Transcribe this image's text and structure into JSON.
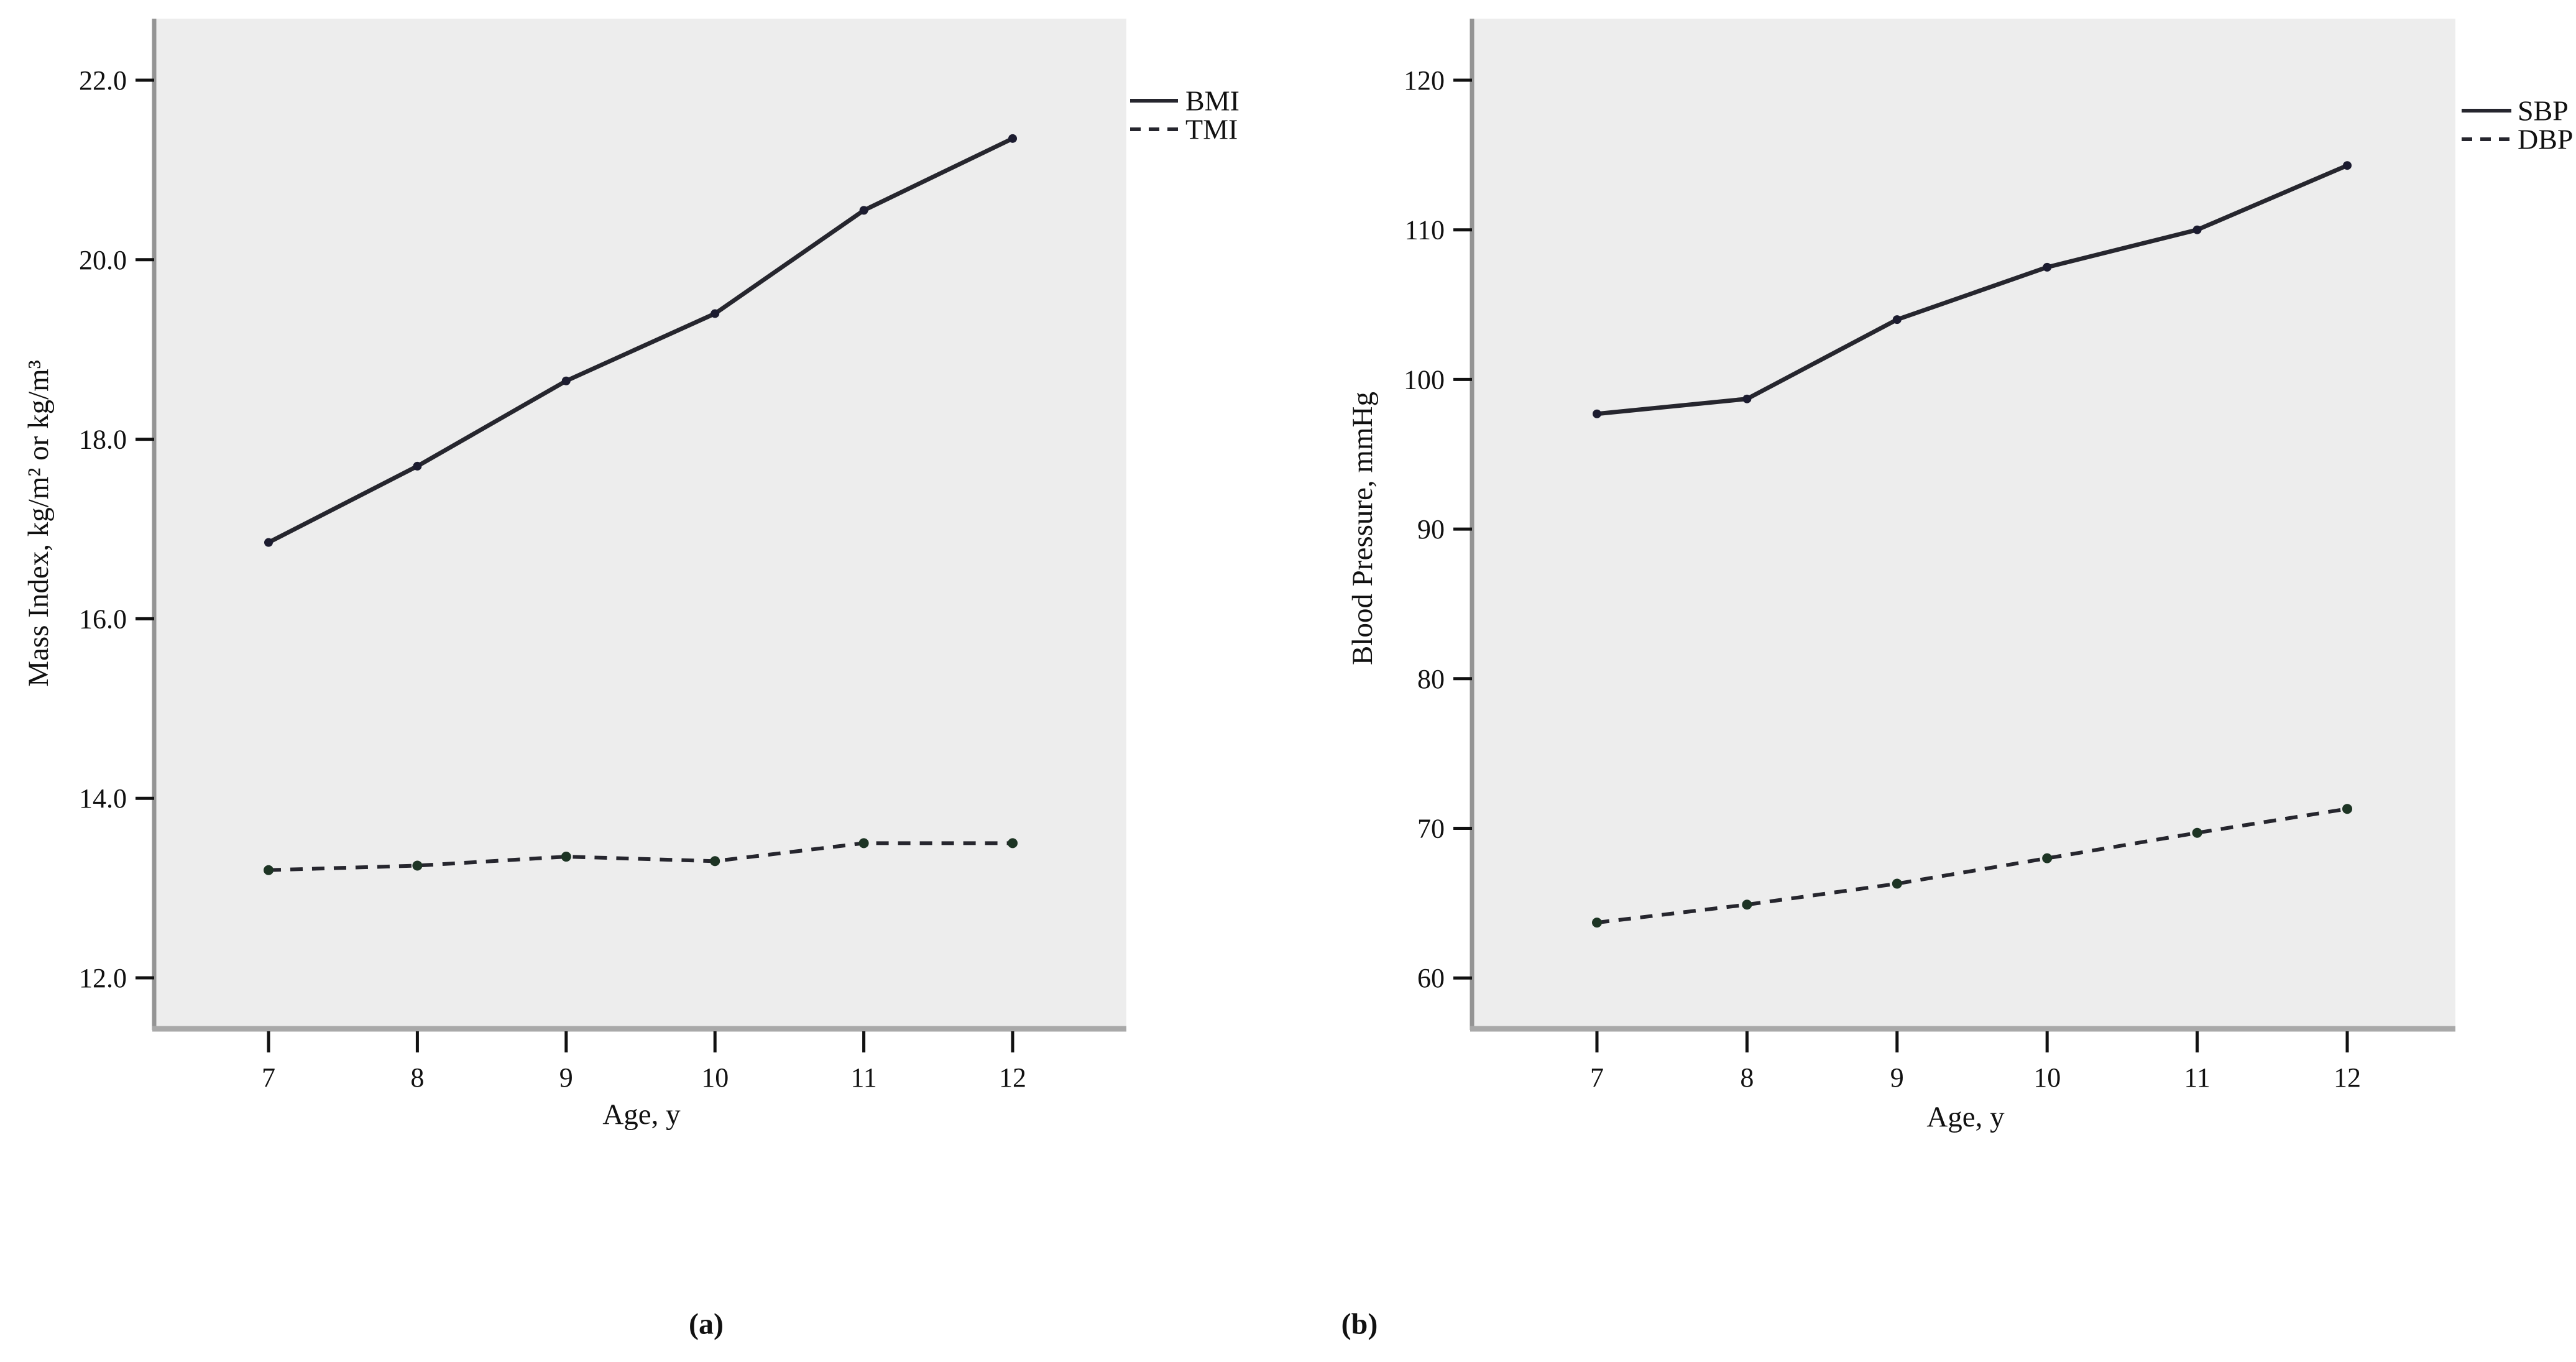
{
  "figure": {
    "captions": {
      "a": "(a)",
      "b": "(b)"
    },
    "colors": {
      "plot_bg": "#ededed",
      "axis_line": "#949494",
      "bottom_axis_line": "#a9a9a9",
      "tick": "#111111",
      "text": "#111111",
      "line": "#26262e",
      "marker_solid": "#1c1c30",
      "marker_dashed": "#1d3424"
    }
  },
  "chart_data": [
    {
      "id": "a",
      "type": "line",
      "title": "",
      "xlabel": "Age, y",
      "ylabel": "Mass Index, kg/m² or kg/m³",
      "x": [
        7,
        8,
        9,
        10,
        11,
        12
      ],
      "xtick_labels": [
        "7",
        "8",
        "9",
        "10",
        "11",
        "12"
      ],
      "ytick_values": [
        12,
        14,
        16,
        18,
        20,
        22
      ],
      "ytick_labels": [
        "12.0",
        "14.0",
        "16.0",
        "18.0",
        "20.0",
        "22.0"
      ],
      "ylim": [
        11.3,
        22.7
      ],
      "grid": false,
      "legend_position": "top-right-outside",
      "series": [
        {
          "name": "BMI",
          "style": "solid",
          "values": [
            16.85,
            17.7,
            18.65,
            19.4,
            20.55,
            21.35
          ]
        },
        {
          "name": "TMI",
          "style": "dashed",
          "values": [
            13.2,
            13.25,
            13.35,
            13.3,
            13.5,
            13.5
          ]
        }
      ]
    },
    {
      "id": "b",
      "type": "line",
      "title": "",
      "xlabel": "Age, y",
      "ylabel": "Blood Pressure, mmHg",
      "x": [
        7,
        8,
        9,
        10,
        11,
        12
      ],
      "xtick_labels": [
        "7",
        "8",
        "9",
        "10",
        "11",
        "12"
      ],
      "ytick_values": [
        60,
        70,
        80,
        90,
        100,
        110,
        120
      ],
      "ytick_labels": [
        "60",
        "70",
        "80",
        "90",
        "100",
        "110",
        "120"
      ],
      "ylim": [
        56.7,
        123.9
      ],
      "grid": false,
      "legend_position": "top-right-outside",
      "series": [
        {
          "name": "SBP",
          "style": "solid",
          "values": [
            97.7,
            98.7,
            104.0,
            107.5,
            110.0,
            114.3
          ]
        },
        {
          "name": "DBP",
          "style": "dashed",
          "values": [
            63.7,
            64.9,
            66.3,
            68.0,
            69.7,
            71.3
          ]
        }
      ]
    }
  ]
}
